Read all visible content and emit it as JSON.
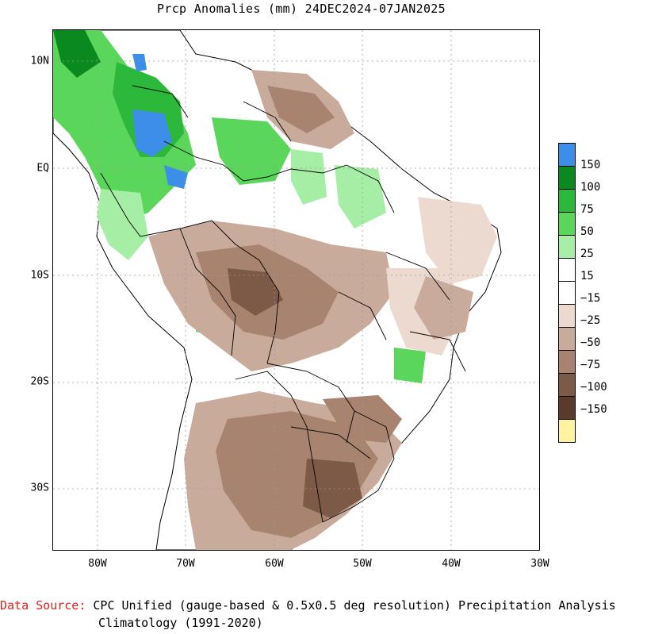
{
  "title": "Prcp Anomalies (mm) 24DEC2024-07JAN2025",
  "map": {
    "region": "South America (Brazil and neighbors)",
    "lat_labels": [
      "10N",
      "EQ",
      "10S",
      "20S",
      "30S"
    ],
    "lon_labels": [
      "80W",
      "70W",
      "60W",
      "50W",
      "40W",
      "30W"
    ],
    "lat_range": [
      -36,
      13
    ],
    "lon_range": [
      -85,
      -30
    ]
  },
  "colorbar": {
    "labels": [
      "150",
      "100",
      "75",
      "50",
      "25",
      "15",
      "−15",
      "−25",
      "−50",
      "−75",
      "−100",
      "−150"
    ],
    "colors": [
      "#3c8ee8",
      "#0a8a1e",
      "#2cb83a",
      "#5ad65a",
      "#a6eea6",
      "#ffffff",
      "#ffffff",
      "#ecdad0",
      "#c9ab9c",
      "#a78370",
      "#7d5a48",
      "#5a3a2c",
      "#fff3a0"
    ]
  },
  "footer": {
    "source_label": "Data Source:",
    "source_text": " CPC Unified (gauge-based & 0.5x0.5 deg resolution) Precipitation Analysis",
    "climatology": "Climatology (1991-2020)"
  }
}
